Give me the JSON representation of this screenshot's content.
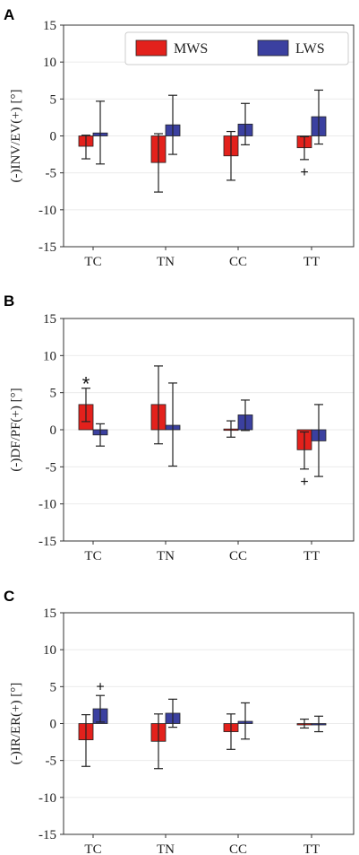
{
  "legend": {
    "labels": [
      "MWS",
      "LWS"
    ],
    "colors": [
      "#e3211c",
      "#3b40a0"
    ],
    "placement": "top-right"
  },
  "chart_data": [
    {
      "type": "bar",
      "panel": "A",
      "ylabel": "(-)INV/EV(+) [°]",
      "ylim": [
        -15,
        15
      ],
      "yticks": [
        -15,
        -10,
        -5,
        0,
        5,
        10,
        15
      ],
      "categories": [
        "TC",
        "TN",
        "CC",
        "TT"
      ],
      "show_legend": true,
      "series": [
        {
          "name": "MWS",
          "values": [
            -1.4,
            -3.6,
            -2.7,
            -1.6
          ],
          "err_low": [
            -3.1,
            -7.6,
            -6.0,
            -3.2
          ],
          "err_high": [
            0.1,
            0.3,
            0.6,
            -0.1
          ]
        },
        {
          "name": "LWS",
          "values": [
            0.4,
            1.5,
            1.6,
            2.6
          ],
          "err_low": [
            -3.8,
            -2.5,
            -1.2,
            -1.1
          ],
          "err_high": [
            4.7,
            5.5,
            4.4,
            6.2
          ]
        }
      ],
      "annotations": [
        {
          "text": "+",
          "category": "TT",
          "series": "MWS",
          "y": -4.8
        }
      ]
    },
    {
      "type": "bar",
      "panel": "B",
      "ylabel": "(-)DF/PF(+) [°]",
      "ylim": [
        -15,
        15
      ],
      "yticks": [
        -15,
        -10,
        -5,
        0,
        5,
        10,
        15
      ],
      "categories": [
        "TC",
        "TN",
        "CC",
        "TT"
      ],
      "show_legend": false,
      "series": [
        {
          "name": "MWS",
          "values": [
            3.4,
            3.4,
            0.1,
            -2.7
          ],
          "err_low": [
            1.1,
            -1.9,
            -1.0,
            -5.3
          ],
          "err_high": [
            5.6,
            8.6,
            1.2,
            -0.3
          ]
        },
        {
          "name": "LWS",
          "values": [
            -0.7,
            0.6,
            2.0,
            -1.5
          ],
          "err_low": [
            -2.2,
            -4.9,
            -0.1,
            -6.3
          ],
          "err_high": [
            0.8,
            6.3,
            4.0,
            3.4
          ]
        }
      ],
      "annotations": [
        {
          "text": "*",
          "category": "TC",
          "series": "MWS",
          "y": 6.7
        },
        {
          "text": "+",
          "category": "TT",
          "series": "MWS",
          "y": -6.9
        }
      ]
    },
    {
      "type": "bar",
      "panel": "C",
      "ylabel": "(-)IR/ER(+) [°]",
      "ylim": [
        -15,
        15
      ],
      "yticks": [
        -15,
        -10,
        -5,
        0,
        5,
        10,
        15
      ],
      "categories": [
        "TC",
        "TN",
        "CC",
        "TT"
      ],
      "show_legend": false,
      "series": [
        {
          "name": "MWS",
          "values": [
            -2.2,
            -2.4,
            -1.1,
            0.0
          ],
          "err_low": [
            -5.8,
            -6.1,
            -3.5,
            -0.6
          ],
          "err_high": [
            1.2,
            1.3,
            1.3,
            0.6
          ]
        },
        {
          "name": "LWS",
          "values": [
            2.0,
            1.4,
            0.3,
            0.0
          ],
          "err_low": [
            0.2,
            -0.5,
            -2.1,
            -1.1
          ],
          "err_high": [
            3.8,
            3.3,
            2.8,
            1.0
          ]
        }
      ],
      "annotations": [
        {
          "text": "+",
          "category": "TC",
          "series": "LWS",
          "y": 5.1
        }
      ]
    }
  ]
}
